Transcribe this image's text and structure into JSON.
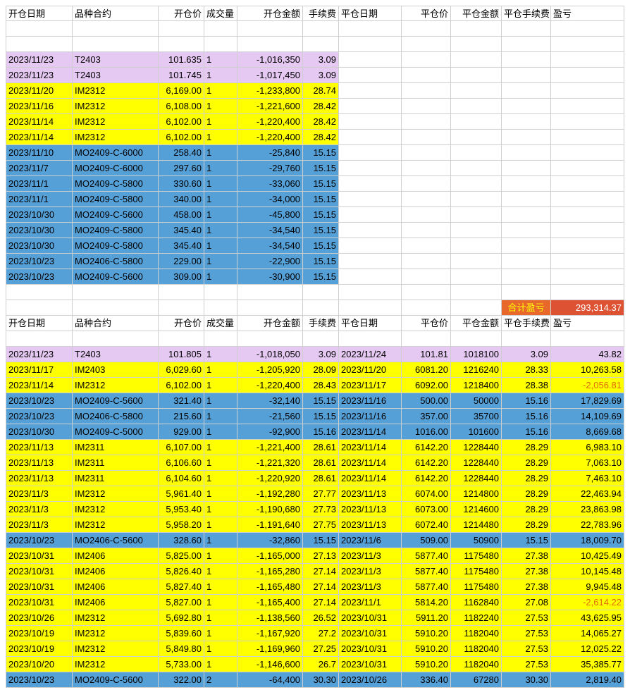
{
  "colors": {
    "purple": "#e6c9f2",
    "yellow": "#ffff00",
    "blue": "#56a0d8",
    "loss_text": "#e26b0a",
    "total_label_bg": "#e8682c",
    "total_label_fg": "#ffff00",
    "total_value_bg": "#dd5233",
    "total_value_fg": "#ffffff"
  },
  "headers": [
    "开仓日期",
    "品种合约",
    "开仓价",
    "成交量",
    "开仓金额",
    "手续费",
    "平仓日期",
    "平仓价",
    "平仓金额",
    "平仓手续费",
    "盈亏"
  ],
  "total": {
    "label": "合计盈亏",
    "value": "293,314.37"
  },
  "open_positions": [
    {
      "color": "purple",
      "cells": [
        "2023/11/23",
        "T2403",
        "101.635",
        "1",
        "-1,016,350",
        "3.09"
      ]
    },
    {
      "color": "purple",
      "cells": [
        "2023/11/23",
        "T2403",
        "101.745",
        "1",
        "-1,017,450",
        "3.09"
      ]
    },
    {
      "color": "yellow",
      "cells": [
        "2023/11/20",
        "IM2312",
        "6,169.00",
        "1",
        "-1,233,800",
        "28.74"
      ]
    },
    {
      "color": "yellow",
      "cells": [
        "2023/11/16",
        "IM2312",
        "6,108.00",
        "1",
        "-1,221,600",
        "28.42"
      ]
    },
    {
      "color": "yellow",
      "cells": [
        "2023/11/14",
        "IM2312",
        "6,102.00",
        "1",
        "-1,220,400",
        "28.42"
      ]
    },
    {
      "color": "yellow",
      "cells": [
        "2023/11/14",
        "IM2312",
        "6,102.00",
        "1",
        "-1,220,400",
        "28.42"
      ]
    },
    {
      "color": "blue",
      "cells": [
        "2023/11/10",
        "MO2409-C-6000",
        "258.40",
        "1",
        "-25,840",
        "15.15"
      ]
    },
    {
      "color": "blue",
      "cells": [
        "2023/11/7",
        "MO2409-C-6000",
        "297.60",
        "1",
        "-29,760",
        "15.15"
      ]
    },
    {
      "color": "blue",
      "cells": [
        "2023/11/1",
        "MO2409-C-5800",
        "330.60",
        "1",
        "-33,060",
        "15.15"
      ]
    },
    {
      "color": "blue",
      "cells": [
        "2023/11/1",
        "MO2409-C-5800",
        "340.00",
        "1",
        "-34,000",
        "15.15"
      ]
    },
    {
      "color": "blue",
      "cells": [
        "2023/10/30",
        "MO2409-C-5600",
        "458.00",
        "1",
        "-45,800",
        "15.15"
      ]
    },
    {
      "color": "blue",
      "cells": [
        "2023/10/30",
        "MO2409-C-5800",
        "345.40",
        "1",
        "-34,540",
        "15.15"
      ]
    },
    {
      "color": "blue",
      "cells": [
        "2023/10/30",
        "MO2409-C-5800",
        "345.40",
        "1",
        "-34,540",
        "15.15"
      ]
    },
    {
      "color": "blue",
      "cells": [
        "2023/10/23",
        "MO2406-C-5800",
        "229.00",
        "1",
        "-22,900",
        "15.15"
      ]
    },
    {
      "color": "blue",
      "cells": [
        "2023/10/23",
        "MO2409-C-5600",
        "309.00",
        "1",
        "-30,900",
        "15.15"
      ]
    }
  ],
  "closed_positions": [
    {
      "color": "purple",
      "cells": [
        "2023/11/23",
        "T2403",
        "101.805",
        "1",
        "-1,018,050",
        "3.09",
        "2023/11/24",
        "101.81",
        "1018100",
        "3.09",
        "43.82"
      ]
    },
    {
      "color": "yellow",
      "cells": [
        "2023/11/17",
        "IM2403",
        "6,029.60",
        "1",
        "-1,205,920",
        "28.09",
        "2023/11/20",
        "6081.20",
        "1216240",
        "28.33",
        "10,263.58"
      ]
    },
    {
      "color": "yellow",
      "cells": [
        "2023/11/14",
        "IM2312",
        "6,102.00",
        "1",
        "-1,220,400",
        "28.43",
        "2023/11/17",
        "6092.00",
        "1218400",
        "28.38",
        "-2,056.81"
      ]
    },
    {
      "color": "blue",
      "cells": [
        "2023/10/23",
        "MO2409-C-5600",
        "321.40",
        "1",
        "-32,140",
        "15.15",
        "2023/11/16",
        "500.00",
        "50000",
        "15.16",
        "17,829.69"
      ]
    },
    {
      "color": "blue",
      "cells": [
        "2023/10/23",
        "MO2406-C-5800",
        "215.60",
        "1",
        "-21,560",
        "15.15",
        "2023/11/16",
        "357.00",
        "35700",
        "15.16",
        "14,109.69"
      ]
    },
    {
      "color": "blue",
      "cells": [
        "2023/10/30",
        "MO2409-C-5000",
        "929.00",
        "1",
        "-92,900",
        "15.16",
        "2023/11/14",
        "1016.00",
        "101600",
        "15.16",
        "8,669.68"
      ]
    },
    {
      "color": "yellow",
      "cells": [
        "2023/11/13",
        "IM2311",
        "6,107.00",
        "1",
        "-1,221,400",
        "28.61",
        "2023/11/14",
        "6142.20",
        "1228440",
        "28.29",
        "6,983.10"
      ]
    },
    {
      "color": "yellow",
      "cells": [
        "2023/11/13",
        "IM2311",
        "6,106.60",
        "1",
        "-1,221,320",
        "28.61",
        "2023/11/14",
        "6142.20",
        "1228440",
        "28.29",
        "7,063.10"
      ]
    },
    {
      "color": "yellow",
      "cells": [
        "2023/11/13",
        "IM2311",
        "6,104.60",
        "1",
        "-1,220,920",
        "28.61",
        "2023/11/14",
        "6142.20",
        "1228440",
        "28.29",
        "7,463.10"
      ]
    },
    {
      "color": "yellow",
      "cells": [
        "2023/11/3",
        "IM2312",
        "5,961.40",
        "1",
        "-1,192,280",
        "27.77",
        "2023/11/13",
        "6074.00",
        "1214800",
        "28.29",
        "22,463.94"
      ]
    },
    {
      "color": "yellow",
      "cells": [
        "2023/11/3",
        "IM2312",
        "5,953.40",
        "1",
        "-1,190,680",
        "27.73",
        "2023/11/13",
        "6073.00",
        "1214600",
        "28.29",
        "23,863.98"
      ]
    },
    {
      "color": "yellow",
      "cells": [
        "2023/11/3",
        "IM2312",
        "5,958.20",
        "1",
        "-1,191,640",
        "27.75",
        "2023/11/13",
        "6072.40",
        "1214480",
        "28.29",
        "22,783.96"
      ]
    },
    {
      "color": "blue",
      "cells": [
        "2023/10/23",
        "MO2406-C-5600",
        "328.60",
        "1",
        "-32,860",
        "15.15",
        "2023/11/6",
        "509.00",
        "50900",
        "15.15",
        "18,009.70"
      ]
    },
    {
      "color": "yellow",
      "cells": [
        "2023/10/31",
        "IM2406",
        "5,825.00",
        "1",
        "-1,165,000",
        "27.13",
        "2023/11/3",
        "5877.40",
        "1175480",
        "27.38",
        "10,425.49"
      ]
    },
    {
      "color": "yellow",
      "cells": [
        "2023/10/31",
        "IM2406",
        "5,826.40",
        "1",
        "-1,165,280",
        "27.14",
        "2023/11/3",
        "5877.40",
        "1175480",
        "27.38",
        "10,145.48"
      ]
    },
    {
      "color": "yellow",
      "cells": [
        "2023/10/31",
        "IM2406",
        "5,827.40",
        "1",
        "-1,165,480",
        "27.14",
        "2023/11/3",
        "5877.40",
        "1175480",
        "27.38",
        "9,945.48"
      ]
    },
    {
      "color": "yellow",
      "cells": [
        "2023/10/31",
        "IM2406",
        "5,827.00",
        "1",
        "-1,165,400",
        "27.14",
        "2023/11/1",
        "5814.20",
        "1162840",
        "27.08",
        "-2,614.22"
      ]
    },
    {
      "color": "yellow",
      "cells": [
        "2023/10/26",
        "IM2312",
        "5,692.80",
        "1",
        "-1,138,560",
        "26.52",
        "2023/10/31",
        "5911.20",
        "1182240",
        "27.53",
        "43,625.95"
      ]
    },
    {
      "color": "yellow",
      "cells": [
        "2023/10/19",
        "IM2312",
        "5,839.60",
        "1",
        "-1,167,920",
        "27.2",
        "2023/10/31",
        "5910.20",
        "1182040",
        "27.53",
        "14,065.27"
      ]
    },
    {
      "color": "yellow",
      "cells": [
        "2023/10/19",
        "IM2312",
        "5,849.80",
        "1",
        "-1,169,960",
        "27.25",
        "2023/10/31",
        "5910.20",
        "1182040",
        "27.53",
        "12,025.22"
      ]
    },
    {
      "color": "yellow",
      "cells": [
        "2023/10/20",
        "IM2312",
        "5,733.00",
        "1",
        "-1,146,600",
        "26.7",
        "2023/10/31",
        "5910.20",
        "1182040",
        "27.53",
        "35,385.77"
      ]
    },
    {
      "color": "blue",
      "cells": [
        "2023/10/23",
        "MO2409-C-5600",
        "322.00",
        "2",
        "-64,400",
        "30.30",
        "2023/10/26",
        "336.40",
        "67280",
        "30.30",
        "2,819.40"
      ]
    }
  ]
}
